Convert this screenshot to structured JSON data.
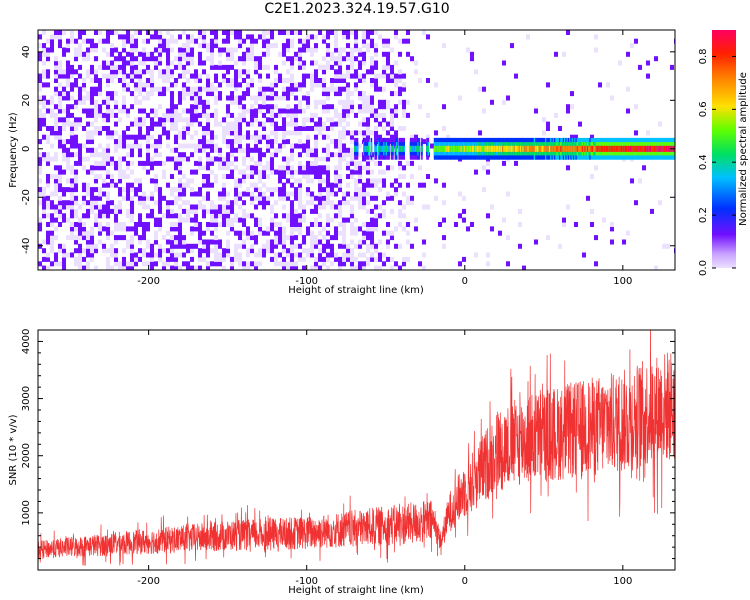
{
  "title": "C2E1.2023.324.19.57.G10",
  "chart_data": [
    {
      "type": "heatmap",
      "xlabel": "Height of straight line (km)",
      "ylabel": "Frequency (Hz)",
      "xlim": [
        -270,
        133
      ],
      "ylim": [
        -50,
        49
      ],
      "xticks": [
        -200,
        -100,
        0,
        100
      ],
      "yticks": [
        -40,
        -20,
        0,
        20,
        40
      ],
      "grid": false,
      "colorbar": {
        "label": "Normalized spectral amplitude",
        "range": [
          0,
          0.9
        ],
        "ticks": [
          "0.0",
          "0.2",
          "0.4",
          "0.6",
          "0.8"
        ],
        "colors": [
          "#ece0ff",
          "#7010ff",
          "#0030ff",
          "#00c0ff",
          "#00e060",
          "#60ff00",
          "#ffe000",
          "#ff8000",
          "#ff2000",
          "#ff0060"
        ]
      },
      "description_points": {
        "noise_region_x": [
          -270,
          -20
        ],
        "signal_band_center_hz": 0,
        "signal_band_width_hz": 5,
        "peak_amplitude": 0.85
      }
    },
    {
      "type": "line",
      "xlabel": "Height of straight line (km)",
      "ylabel": "SNR (10 * v/v)",
      "xlim": [
        -270,
        133
      ],
      "ylim": [
        0,
        4200
      ],
      "xticks": [
        -200,
        -100,
        0,
        100
      ],
      "yticks": [
        1000,
        2000,
        3000,
        4000
      ],
      "color": "#f03232",
      "grid": false,
      "series": [
        {
          "x": [
            -270,
            -250,
            -200,
            -150,
            -100,
            -60,
            -40,
            -20,
            -15,
            -10,
            0,
            10,
            20,
            40,
            60,
            80,
            100,
            120,
            133
          ],
          "y": [
            350,
            400,
            500,
            600,
            650,
            750,
            800,
            850,
            500,
            1000,
            1400,
            1700,
            2100,
            2300,
            2400,
            2500,
            2600,
            2800,
            2900
          ]
        }
      ]
    }
  ]
}
